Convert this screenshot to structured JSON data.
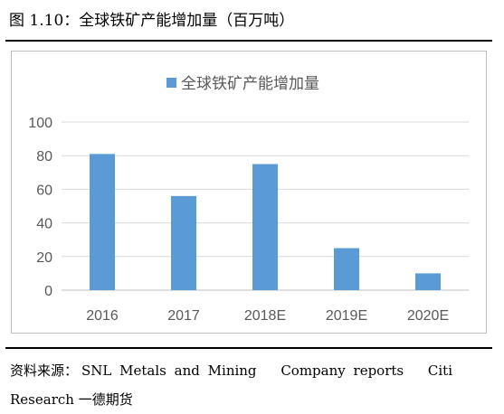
{
  "figure": {
    "title": "图 1.10：全球铁矿产能增加量（百万吨）"
  },
  "source": {
    "label": "资料来源：",
    "parts": [
      "SNL",
      "Metals",
      "and",
      "Mining",
      "Company",
      "reports",
      "Citi"
    ],
    "line2": "Research 一德期货"
  },
  "chart_data": {
    "type": "bar",
    "categories": [
      "2016",
      "2017",
      "2018E",
      "2019E",
      "2020E"
    ],
    "series": [
      {
        "name": "全球铁矿产能增加量",
        "values": [
          81,
          56,
          75,
          25,
          10
        ]
      }
    ],
    "ylim": [
      0,
      100
    ],
    "yticks": [
      0,
      20,
      40,
      60,
      80,
      100
    ],
    "grid": true,
    "legend": "top-center",
    "colors": {
      "bar": "#5B9BD5",
      "grid": "#d9d9d9",
      "axis": "#bfbfbf",
      "tick_text": "#595959"
    }
  }
}
